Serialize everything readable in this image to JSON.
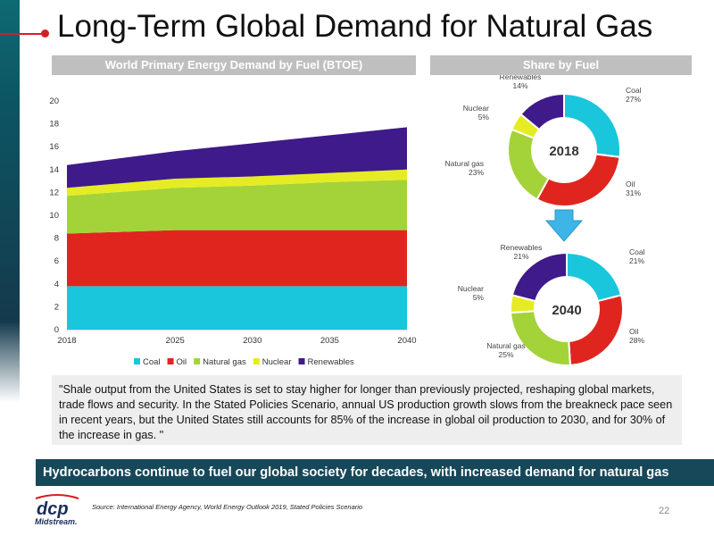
{
  "title": "Long-Term Global Demand for Natural Gas",
  "left_panel_header": "World Primary Energy Demand by Fuel (BTOE)",
  "right_panel_header": "Share by Fuel",
  "chart_data": [
    {
      "type": "area",
      "title": "World Primary Energy Demand by Fuel (BTOE)",
      "x": [
        2018,
        2025,
        2030,
        2035,
        2040
      ],
      "x_ticks": [
        "2018",
        "2025",
        "2030",
        "2035",
        "2040"
      ],
      "ylim": [
        0,
        20
      ],
      "y_ticks": [
        "0",
        "2",
        "4",
        "6",
        "8",
        "10",
        "12",
        "14",
        "16",
        "18",
        "20"
      ],
      "stacked": true,
      "legend_position": "bottom",
      "series": [
        {
          "name": "Coal",
          "color": "#19c6dc",
          "values": [
            3.8,
            3.8,
            3.8,
            3.8,
            3.8
          ]
        },
        {
          "name": "Oil",
          "color": "#e0251f",
          "values": [
            4.6,
            4.9,
            4.9,
            4.9,
            4.9
          ]
        },
        {
          "name": "Natural gas",
          "color": "#a3d339",
          "values": [
            3.3,
            3.7,
            3.9,
            4.2,
            4.4
          ]
        },
        {
          "name": "Nuclear",
          "color": "#e6ec23",
          "values": [
            0.7,
            0.8,
            0.8,
            0.8,
            0.9
          ]
        },
        {
          "name": "Renewables",
          "color": "#3f1a8a",
          "values": [
            2.0,
            2.4,
            2.9,
            3.3,
            3.7
          ]
        }
      ]
    },
    {
      "type": "pie",
      "title": "2018",
      "donut": true,
      "slices": [
        {
          "name": "Coal",
          "label": "Coal",
          "pct_label": "27%",
          "value": 27,
          "color": "#19c6dc"
        },
        {
          "name": "Oil",
          "label": "Oil",
          "pct_label": "31%",
          "value": 31,
          "color": "#e0251f"
        },
        {
          "name": "Natural gas",
          "label": "Natural gas",
          "pct_label": "23%",
          "value": 23,
          "color": "#a3d339"
        },
        {
          "name": "Nuclear",
          "label": "Nuclear",
          "pct_label": "5%",
          "value": 5,
          "color": "#e6ec23"
        },
        {
          "name": "Renewables",
          "label": "Renewables",
          "pct_label": "14%",
          "value": 14,
          "color": "#3f1a8a"
        }
      ]
    },
    {
      "type": "pie",
      "title": "2040",
      "donut": true,
      "slices": [
        {
          "name": "Coal",
          "label": "Coal",
          "pct_label": "21%",
          "value": 21,
          "color": "#19c6dc"
        },
        {
          "name": "Oil",
          "label": "Oil",
          "pct_label": "28%",
          "value": 28,
          "color": "#e0251f"
        },
        {
          "name": "Natural gas",
          "label": "Natural gas",
          "pct_label": "25%",
          "value": 25,
          "color": "#a3d339"
        },
        {
          "name": "Nuclear",
          "label": "Nuclear",
          "pct_label": "5%",
          "value": 5,
          "color": "#e6ec23"
        },
        {
          "name": "Renewables",
          "label": "Renewables",
          "pct_label": "21%",
          "value": 21,
          "color": "#3f1a8a"
        }
      ]
    }
  ],
  "quote": "\"Shale output from the United States is set to stay higher for longer than previously projected, reshaping global markets, trade flows and security. In the Stated Policies Scenario, annual US production growth slows from the breakneck pace seen in recent years, but the United States still accounts for 85% of the increase in global oil production to 2030, and for 30% of the increase in gas. \"",
  "banner": "Hydrocarbons continue to fuel our global society for decades, with increased demand for natural gas",
  "source": "Source: International Energy Agency, World Energy Outlook 2019, Stated Policies Scenario",
  "page_number": "22",
  "logo": {
    "line1": "dcp",
    "line2": "Midstream."
  },
  "colors": {
    "banner": "#16485a",
    "accent": "#d21f26",
    "header_gray": "#bfbfbf"
  }
}
